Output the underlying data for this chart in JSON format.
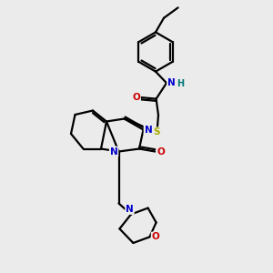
{
  "background_color": "#ebebeb",
  "atom_colors": {
    "C": "#000000",
    "N": "#0000cc",
    "O": "#cc0000",
    "S": "#aaaa00",
    "H": "#007777"
  },
  "bond_color": "#000000",
  "bond_width": 1.6,
  "figsize": [
    3.0,
    3.0
  ],
  "dpi": 100,
  "xlim": [
    0,
    10
  ],
  "ylim": [
    0,
    10
  ]
}
